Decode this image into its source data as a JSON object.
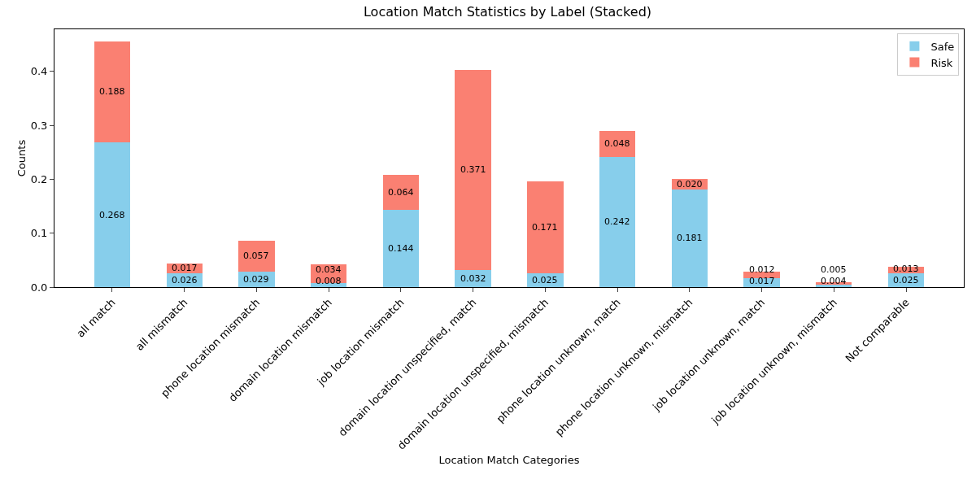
{
  "chart_data": {
    "type": "bar",
    "title": "Location Match Statistics by Label (Stacked)",
    "xlabel": "Location Match Categories",
    "ylabel": "Counts",
    "categories": [
      "all match",
      "all mismatch",
      "phone location mismatch",
      "domain location mismatch",
      "job location mismatch",
      "domain location unspecified, match",
      "domain location unspecified, mismatch",
      "phone location unknown, match",
      "phone location unknown, mismatch",
      "job location unknown, match",
      "job location unknown, mismatch",
      "Not comparable"
    ],
    "stacked": true,
    "series": [
      {
        "name": "Safe",
        "color": "#87ceeb",
        "values": [
          0.268,
          0.026,
          0.029,
          0.008,
          0.144,
          0.032,
          0.025,
          0.242,
          0.181,
          0.017,
          0.004,
          0.025
        ],
        "value_labels": [
          "0.268",
          "0.026",
          "0.029",
          "0.008",
          "0.144",
          "0.032",
          "0.025",
          "0.242",
          "0.181",
          "0.017",
          "0.004",
          "0.025"
        ]
      },
      {
        "name": "Risk",
        "color": "#fa8072",
        "values": [
          0.188,
          0.017,
          0.057,
          0.034,
          0.064,
          0.371,
          0.171,
          0.048,
          0.02,
          0.012,
          0.005,
          0.013
        ],
        "value_labels": [
          "0.188",
          "0.017",
          "0.057",
          "0.034",
          "0.064",
          "0.371",
          "0.171",
          "0.048",
          "0.020",
          "0.012",
          "0.005",
          "0.013"
        ]
      }
    ],
    "ylim": [
      0,
      0.478
    ],
    "yticks": [
      {
        "value": 0,
        "label": "0.0"
      },
      0.1,
      0.2,
      0.3,
      0.4
    ],
    "grid": false,
    "legend": "top right"
  }
}
